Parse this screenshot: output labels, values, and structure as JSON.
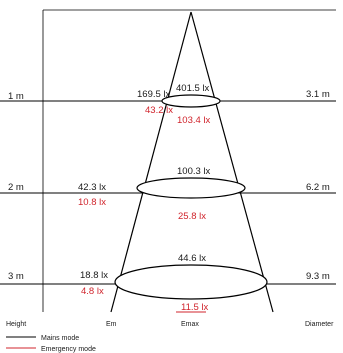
{
  "rows": [
    {
      "height": "1 m",
      "em_mains": "169.5 lx",
      "em_emergency": "43.2 lx",
      "emax_mains": "401.5 lx",
      "emax_emergency": "103.4 lx",
      "diameter": "3.1 m"
    },
    {
      "height": "2 m",
      "em_mains": "42.3 lx",
      "em_emergency": "10.8 lx",
      "emax_mains": "100.3 lx",
      "emax_emergency": "25.8 lx",
      "diameter": "6.2 m"
    },
    {
      "height": "3 m",
      "em_mains": "18.8 lx",
      "em_emergency": "4.8 lx",
      "emax_mains": "44.6 lx",
      "emax_emergency": "11.5 lx",
      "diameter": "9.3 m"
    }
  ],
  "columns": {
    "height": "Height",
    "em": "Em",
    "emax": "Emax",
    "diameter": "Diameter"
  },
  "legend": [
    {
      "label": "Mains mode",
      "color": "#000000"
    },
    {
      "label": "Emergency mode",
      "color": "#d0242c"
    }
  ]
}
